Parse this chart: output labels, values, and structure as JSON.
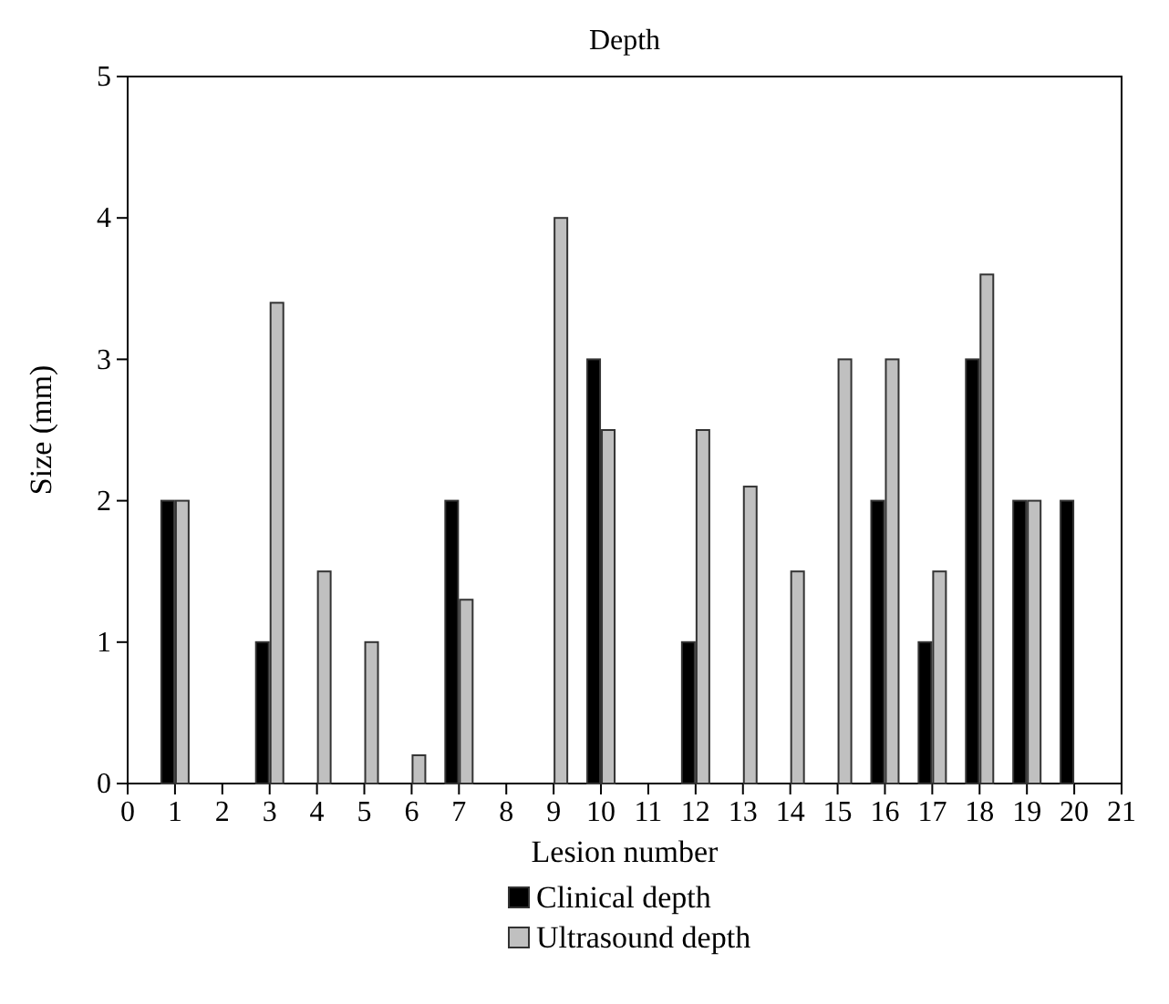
{
  "chart_data": {
    "type": "bar",
    "title": "Depth",
    "xlabel": "Lesion number",
    "ylabel": "Size (mm)",
    "x": [
      1,
      2,
      3,
      4,
      5,
      6,
      7,
      8,
      9,
      10,
      11,
      12,
      13,
      14,
      15,
      16,
      17,
      18,
      19,
      20
    ],
    "series": [
      {
        "name": "Clinical depth",
        "color": "#000000",
        "values": [
          2,
          null,
          1,
          null,
          null,
          null,
          2,
          null,
          null,
          3,
          null,
          1,
          null,
          null,
          null,
          2,
          1,
          3,
          2,
          2
        ]
      },
      {
        "name": "Ultrasound depth",
        "color": "#c0c0c0",
        "values": [
          2,
          null,
          3.4,
          1.5,
          1,
          0.2,
          1.3,
          null,
          4,
          2.5,
          null,
          2.5,
          2.1,
          1.5,
          3,
          3,
          1.5,
          3.6,
          2,
          null
        ]
      }
    ],
    "xlim": [
      0,
      21
    ],
    "xticks": [
      0,
      1,
      2,
      3,
      4,
      5,
      6,
      7,
      8,
      9,
      10,
      11,
      12,
      13,
      14,
      15,
      16,
      17,
      18,
      19,
      20,
      21
    ],
    "ylim": [
      0,
      5
    ],
    "yticks": [
      0,
      1,
      2,
      3,
      4,
      5
    ],
    "legend": "bottom"
  }
}
